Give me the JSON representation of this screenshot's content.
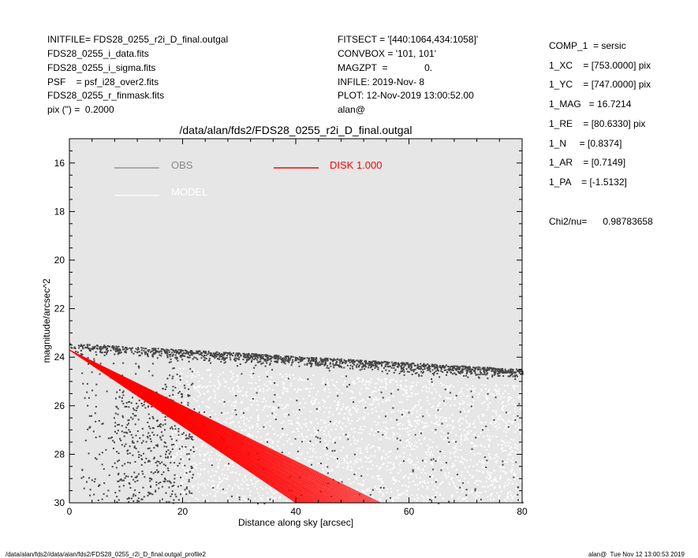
{
  "header_left": [
    "INITFILE= FDS28_0255_r2i_D_final.outgal",
    "FDS28_0255_i_data.fits",
    "FDS28_0255_i_sigma.fits",
    "PSF    = psf_i28_over2.fits",
    "FDS28_0255_r_finmask.fits",
    "pix (\") =  0.2000"
  ],
  "header_mid": [
    "FITSECT = '[440:1064,434:1058]'",
    "CONVBOX = '101, 101'",
    "MAGZPT  =              0.",
    "INFILE: 2019-Nov- 8",
    "PLOT: 12-Nov-2019 13:00:52.00",
    "alan@"
  ],
  "params": [
    "COMP_1  = sersic",
    "1_XC    = [753.0000] pix",
    "1_YC    = [747.0000] pix",
    "1_MAG   = 16.7214",
    "1_RE    = [80.6330] pix",
    "1_N     = [0.8374]",
    "1_AR    = [0.7149]",
    "1_PA    = [-1.5132]"
  ],
  "chi2": "Chi2/nu=      0.98783658",
  "footer": {
    "left": "/data/alan/fds2//data/alan/fds2/FDS28_0255_r2i_D_final.outgal_profile2",
    "right": "alan@  Tue Nov 12 13:00:53 2019"
  },
  "chart_data": {
    "type": "scatter",
    "title": "/data/alan/fds2/FDS28_0255_r2i_D_final.outgal",
    "xlabel": "Distance along sky [arcsec]",
    "ylabel": "magnitude/arcsec^2",
    "xlim": [
      0,
      80
    ],
    "ylim": [
      30,
      15
    ],
    "xticks": [
      "0",
      "20",
      "40",
      "60",
      "80"
    ],
    "yticks": [
      "16",
      "18",
      "20",
      "22",
      "24",
      "26",
      "28",
      "30"
    ],
    "grid": false,
    "legend_position": "top",
    "legend": [
      {
        "label": "OBS",
        "color": "#888888"
      },
      {
        "label": "MODEL",
        "color": "#ffffff"
      },
      {
        "label": "DISK  1.000",
        "color": "#ff0000"
      }
    ],
    "colors": {
      "background": "#e6e6e6",
      "obs": "#444444",
      "model": "#ffffff",
      "disk": "#ff0000"
    },
    "series": [
      {
        "name": "OBS",
        "kind": "points",
        "note": "upper envelope ~23.4 at 0 to ~24.5 at 80; scatter extending to 30"
      },
      {
        "name": "MODEL",
        "kind": "points",
        "note": "white points filling 24.5 to 30 beyond 20 arcsec"
      },
      {
        "name": "DISK  1.000",
        "kind": "fan",
        "origin": [
          0,
          23.7
        ],
        "steep_edge": [
          [
            0,
            23.7
          ],
          [
            40,
            30
          ]
        ],
        "shallow_edge": [
          [
            0,
            23.7
          ],
          [
            55,
            30
          ]
        ]
      }
    ]
  }
}
